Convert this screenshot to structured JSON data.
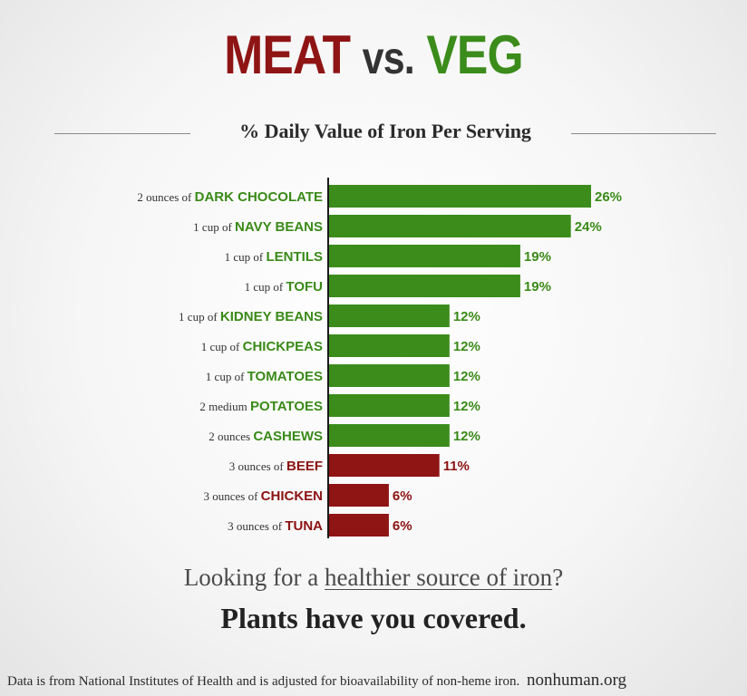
{
  "header": {
    "title_part1": "MEAT",
    "title_part2": "vs.",
    "title_part3": "VEG",
    "subtitle": "% Daily Value of Iron Per Serving"
  },
  "colors": {
    "meat": "#8f1414",
    "veg": "#3b8c1b",
    "veg_label": "#3a8a18",
    "meat_label": "#8c1212"
  },
  "chart_data": {
    "type": "bar",
    "orientation": "horizontal",
    "items": [
      {
        "prefix": "2 ounces of",
        "food": "DARK CHOCOLATE",
        "value": 26,
        "label": "26%",
        "group": "veg"
      },
      {
        "prefix": "1 cup of",
        "food": "NAVY BEANS",
        "value": 24,
        "label": "24%",
        "group": "veg"
      },
      {
        "prefix": "1 cup of",
        "food": "LENTILS",
        "value": 19,
        "label": "19%",
        "group": "veg"
      },
      {
        "prefix": "1 cup of",
        "food": "TOFU",
        "value": 19,
        "label": "19%",
        "group": "veg"
      },
      {
        "prefix": "1 cup of",
        "food": "KIDNEY BEANS",
        "value": 12,
        "label": "12%",
        "group": "veg"
      },
      {
        "prefix": "1 cup of",
        "food": "CHICKPEAS",
        "value": 12,
        "label": "12%",
        "group": "veg"
      },
      {
        "prefix": "1 cup of",
        "food": "TOMATOES",
        "value": 12,
        "label": "12%",
        "group": "veg"
      },
      {
        "prefix": "2 medium",
        "food": "POTATOES",
        "value": 12,
        "label": "12%",
        "group": "veg"
      },
      {
        "prefix": "2 ounces",
        "food": "CASHEWS",
        "value": 12,
        "label": "12%",
        "group": "veg"
      },
      {
        "prefix": "3 ounces of",
        "food": "BEEF",
        "value": 11,
        "label": "11%",
        "group": "meat"
      },
      {
        "prefix": "3 ounces of",
        "food": "CHICKEN",
        "value": 6,
        "label": "6%",
        "group": "meat"
      },
      {
        "prefix": "3 ounces of",
        "food": "TUNA",
        "value": 6,
        "label": "6%",
        "group": "meat"
      }
    ],
    "xlim": [
      0,
      26
    ],
    "grid": false,
    "legend": "none"
  },
  "tagline": {
    "line1_before": "Looking for a ",
    "line1_underlined": "healthier source of iron",
    "line1_after": "?",
    "line2": "Plants have you covered."
  },
  "footer": {
    "note": "Data is from National Institutes of Health and is adjusted for bioavailability of non-heme iron.",
    "site": "nonhuman.org"
  }
}
